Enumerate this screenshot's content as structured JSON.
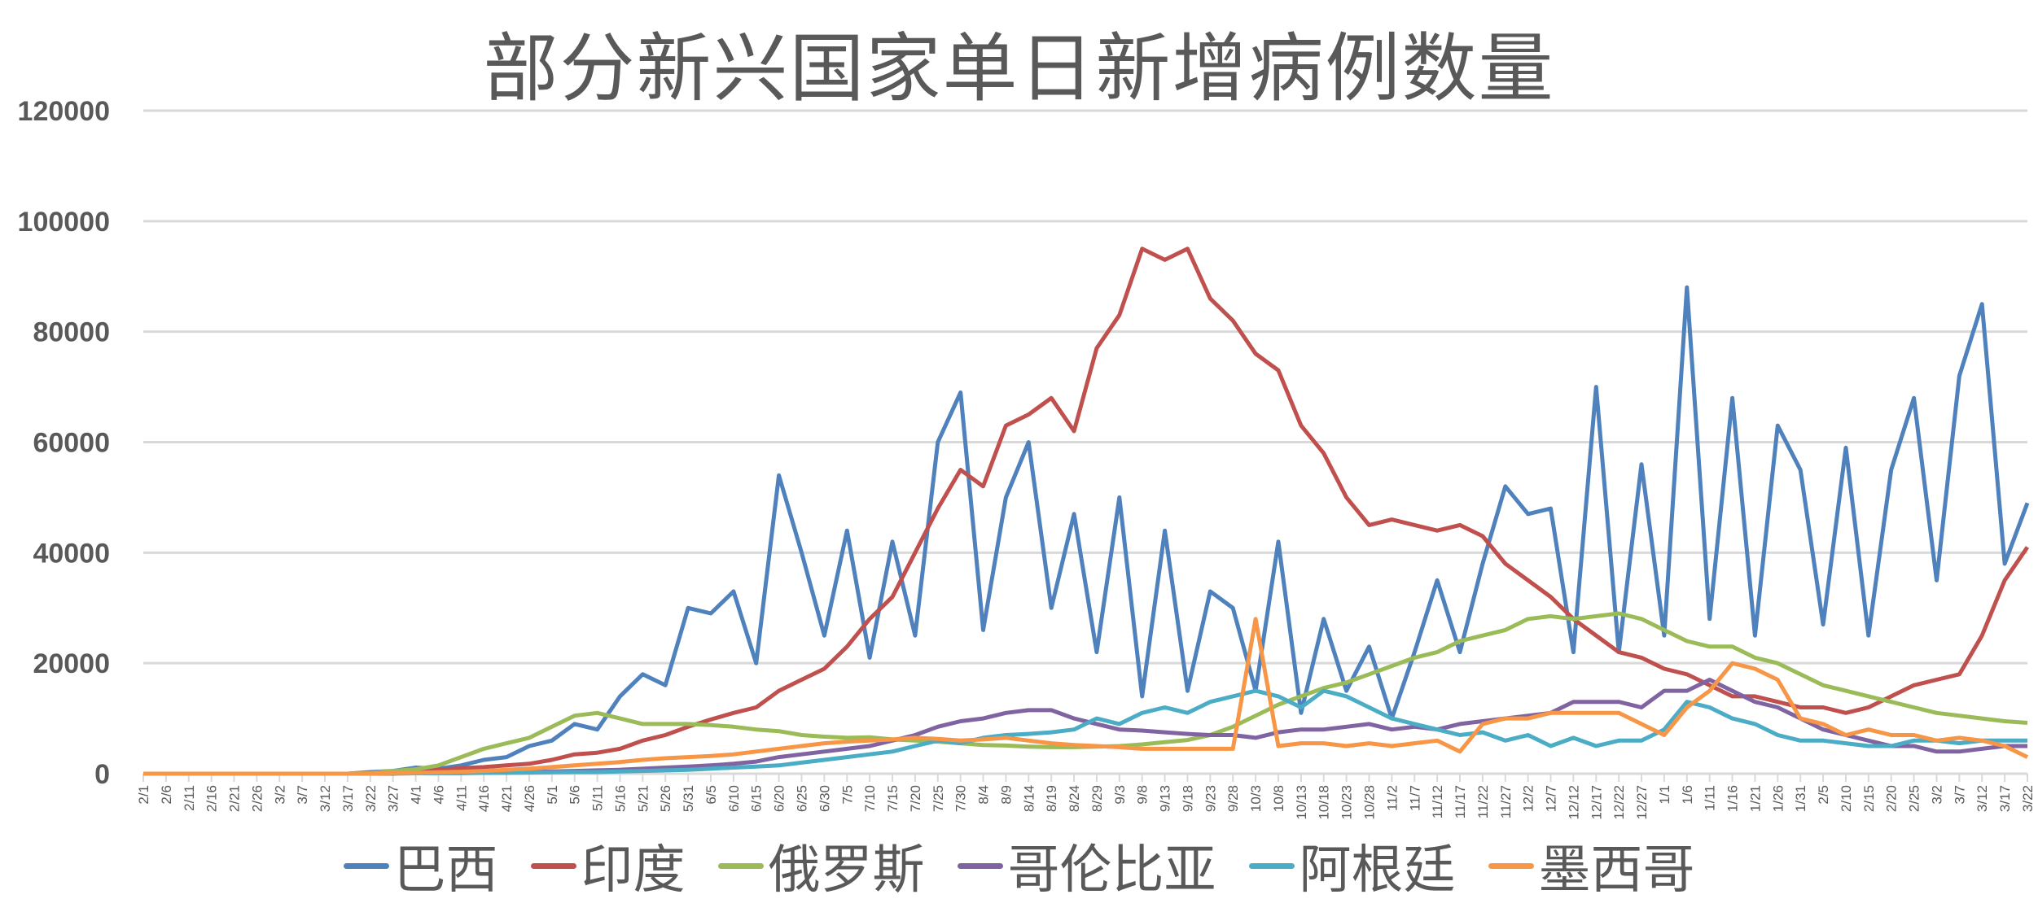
{
  "chart_data": {
    "type": "line",
    "title": "部分新兴国家单日新增病例数量",
    "xlabel": "",
    "ylabel": "",
    "ylim": [
      0,
      120000
    ],
    "yticks": [
      0,
      20000,
      40000,
      60000,
      80000,
      100000,
      120000
    ],
    "grid": true,
    "legend": "bottom",
    "x": [
      "2/1",
      "2/6",
      "2/11",
      "2/16",
      "2/21",
      "2/26",
      "3/2",
      "3/7",
      "3/12",
      "3/17",
      "3/22",
      "3/27",
      "4/1",
      "4/6",
      "4/11",
      "4/16",
      "4/21",
      "4/26",
      "5/1",
      "5/6",
      "5/11",
      "5/16",
      "5/21",
      "5/26",
      "5/31",
      "6/5",
      "6/10",
      "6/15",
      "6/20",
      "6/25",
      "6/30",
      "7/5",
      "7/10",
      "7/15",
      "7/20",
      "7/25",
      "7/30",
      "8/4",
      "8/9",
      "8/14",
      "8/19",
      "8/24",
      "8/29",
      "9/3",
      "9/8",
      "9/13",
      "9/18",
      "9/23",
      "9/28",
      "10/3",
      "10/8",
      "10/13",
      "10/18",
      "10/23",
      "10/28",
      "11/2",
      "11/7",
      "11/12",
      "11/17",
      "11/22",
      "11/27",
      "12/2",
      "12/7",
      "12/12",
      "12/17",
      "12/22",
      "12/27",
      "1/1",
      "1/6",
      "1/11",
      "1/16",
      "1/21",
      "1/26",
      "1/31",
      "2/5",
      "2/10",
      "2/15",
      "2/20",
      "2/25",
      "3/2",
      "3/7",
      "3/12",
      "3/17",
      "3/22"
    ],
    "series": [
      {
        "name": "巴西",
        "color": "#4f81bd",
        "values": [
          0,
          0,
          0,
          0,
          0,
          0,
          0,
          0,
          0,
          0,
          300,
          500,
          1100,
          900,
          1500,
          2500,
          3000,
          5000,
          6000,
          9000,
          8000,
          14000,
          18000,
          16000,
          30000,
          29000,
          33000,
          20000,
          54000,
          40000,
          25000,
          44000,
          21000,
          42000,
          25000,
          60000,
          69000,
          26000,
          50000,
          60000,
          30000,
          47000,
          22000,
          50000,
          14000,
          44000,
          15000,
          33000,
          30000,
          15000,
          42000,
          11000,
          28000,
          15000,
          23000,
          10000,
          22000,
          35000,
          22000,
          38000,
          52000,
          47000,
          48000,
          22000,
          70000,
          22000,
          56000,
          25000,
          88000,
          28000,
          68000,
          25000,
          63000,
          55000,
          27000,
          59000,
          25000,
          55000,
          68000,
          35000,
          72000,
          85000,
          38000,
          49000
        ]
      },
      {
        "name": "印度",
        "color": "#c0504d",
        "values": [
          0,
          0,
          0,
          0,
          0,
          0,
          0,
          0,
          0,
          0,
          0,
          0,
          400,
          700,
          1000,
          1200,
          1500,
          1800,
          2500,
          3500,
          3800,
          4500,
          6000,
          7000,
          8500,
          9800,
          11000,
          12000,
          15000,
          17000,
          19000,
          23000,
          28000,
          32000,
          40000,
          48000,
          55000,
          52000,
          63000,
          65000,
          68000,
          62000,
          77000,
          83000,
          95000,
          93000,
          95000,
          86000,
          82000,
          76000,
          73000,
          63000,
          58000,
          50000,
          45000,
          46000,
          45000,
          44000,
          45000,
          43000,
          38000,
          35000,
          32000,
          28000,
          25000,
          22000,
          21000,
          19000,
          18000,
          16000,
          14000,
          14000,
          13000,
          12000,
          12000,
          11000,
          12000,
          14000,
          16000,
          17000,
          18000,
          25000,
          35000,
          41000
        ]
      },
      {
        "name": "俄罗斯",
        "color": "#9bbb59",
        "values": [
          0,
          0,
          0,
          0,
          0,
          0,
          0,
          0,
          0,
          0,
          100,
          500,
          800,
          1500,
          3000,
          4500,
          5500,
          6500,
          8500,
          10500,
          11000,
          10000,
          9000,
          9000,
          9000,
          8800,
          8500,
          8000,
          7700,
          7000,
          6700,
          6500,
          6600,
          6200,
          6000,
          5800,
          5500,
          5200,
          5100,
          4900,
          4800,
          4800,
          4900,
          5000,
          5300,
          5700,
          6100,
          7000,
          8500,
          10500,
          12500,
          14000,
          15500,
          16500,
          18000,
          19500,
          21000,
          22000,
          24000,
          25000,
          26000,
          28000,
          28500,
          28000,
          28500,
          29000,
          28000,
          26000,
          24000,
          23000,
          23000,
          21000,
          20000,
          18000,
          16000,
          15000,
          14000,
          13000,
          12000,
          11000,
          10500,
          10000,
          9500,
          9200
        ]
      },
      {
        "name": "哥伦比亚",
        "color": "#8064a2",
        "values": [
          0,
          0,
          0,
          0,
          0,
          0,
          0,
          0,
          0,
          0,
          0,
          50,
          80,
          100,
          100,
          200,
          250,
          300,
          400,
          500,
          600,
          700,
          900,
          1100,
          1300,
          1500,
          1800,
          2200,
          3000,
          3500,
          4000,
          4500,
          5000,
          6000,
          7000,
          8500,
          9500,
          10000,
          11000,
          11500,
          11500,
          10000,
          9000,
          8000,
          7800,
          7500,
          7200,
          7000,
          7000,
          6500,
          7500,
          8000,
          8000,
          8500,
          9000,
          8000,
          8500,
          8000,
          9000,
          9500,
          10000,
          10500,
          11000,
          13000,
          13000,
          13000,
          12000,
          15000,
          15000,
          17000,
          15000,
          13000,
          12000,
          10000,
          8000,
          7000,
          6000,
          5000,
          5000,
          4000,
          4000,
          4500,
          5000,
          5000
        ]
      },
      {
        "name": "阿根廷",
        "color": "#4bacc6",
        "values": [
          0,
          0,
          0,
          0,
          0,
          0,
          0,
          0,
          0,
          0,
          0,
          50,
          80,
          100,
          100,
          150,
          150,
          200,
          250,
          300,
          300,
          400,
          500,
          600,
          700,
          900,
          1100,
          1300,
          1500,
          2000,
          2500,
          3000,
          3500,
          4000,
          5000,
          6000,
          5500,
          6500,
          7000,
          7200,
          7500,
          8000,
          10000,
          9000,
          11000,
          12000,
          11000,
          13000,
          14000,
          15000,
          14000,
          12000,
          15000,
          14000,
          12000,
          10000,
          9000,
          8000,
          7000,
          7500,
          6000,
          7000,
          5000,
          6500,
          5000,
          6000,
          6000,
          8000,
          13000,
          12000,
          10000,
          9000,
          7000,
          6000,
          6000,
          5500,
          5000,
          5000,
          6000,
          6000,
          5500,
          6000,
          6000,
          6000
        ]
      },
      {
        "name": "墨西哥",
        "color": "#f79646",
        "values": [
          0,
          0,
          0,
          0,
          0,
          0,
          0,
          0,
          0,
          0,
          50,
          100,
          150,
          250,
          350,
          500,
          700,
          900,
          1200,
          1500,
          1800,
          2100,
          2500,
          2800,
          3000,
          3200,
          3500,
          4000,
          4500,
          5000,
          5500,
          5800,
          6000,
          6200,
          6500,
          6300,
          6000,
          6200,
          6500,
          6000,
          5500,
          5200,
          5000,
          4800,
          4500,
          4500,
          4500,
          4500,
          4500,
          28000,
          5000,
          5500,
          5500,
          5000,
          5500,
          5000,
          5500,
          6000,
          4000,
          9000,
          10000,
          10000,
          11000,
          11000,
          11000,
          11000,
          9000,
          7000,
          12000,
          15000,
          20000,
          19000,
          17000,
          10000,
          9000,
          7000,
          8000,
          7000,
          7000,
          6000,
          6500,
          6000,
          5000,
          3000
        ]
      }
    ]
  }
}
